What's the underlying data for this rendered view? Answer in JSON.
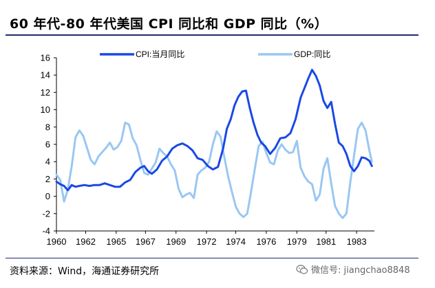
{
  "header": {
    "title": "60 年代-80 年代美国 CPI 同比和 GDP 同比（%）"
  },
  "footer": {
    "source": "资料来源：Wind，海通证券研究所",
    "watermark": "微信号: jiangchao8848"
  },
  "colors": {
    "cpi": "#1948e6",
    "gdp": "#99c7f2",
    "rule": "#1f2a6b"
  },
  "icons": {
    "watermark": "wechat-icon"
  },
  "chart_data": {
    "type": "line",
    "title": "60 年代-80 年代美国 CPI 同比和 GDP 同比（%）",
    "xlabel": "",
    "ylabel": "",
    "ylim": [
      -4,
      16
    ],
    "xlim": [
      1960.0,
      1985.0
    ],
    "yticks": [
      -4,
      -2,
      0,
      2,
      4,
      6,
      8,
      10,
      12,
      14,
      16
    ],
    "xticks": [
      "1960",
      "1962",
      "1965",
      "1967",
      "1969",
      "1972",
      "1974",
      "1976",
      "1979",
      "1981",
      "1983"
    ],
    "xtick_positions": [
      1960.0,
      1962.3,
      1964.7,
      1967.0,
      1969.4,
      1971.8,
      1974.1,
      1976.5,
      1978.9,
      1981.2,
      1983.6
    ],
    "legend_position": "top",
    "grid": false,
    "series": [
      {
        "name": "CPI:当月同比",
        "color": "#1948e6",
        "x": [
          1960.0,
          1960.3,
          1960.6,
          1960.9,
          1961.2,
          1961.5,
          1961.8,
          1962.2,
          1962.6,
          1963.0,
          1963.4,
          1963.8,
          1964.2,
          1964.6,
          1965.0,
          1965.4,
          1965.8,
          1966.2,
          1966.6,
          1966.9,
          1967.2,
          1967.5,
          1967.9,
          1968.3,
          1968.7,
          1969.1,
          1969.5,
          1969.9,
          1970.3,
          1970.7,
          1971.1,
          1971.5,
          1971.9,
          1972.3,
          1972.7,
          1973.1,
          1973.4,
          1973.7,
          1974.0,
          1974.3,
          1974.6,
          1974.9,
          1975.2,
          1975.5,
          1975.8,
          1976.1,
          1976.4,
          1976.8,
          1977.2,
          1977.6,
          1978.0,
          1978.4,
          1978.8,
          1979.2,
          1979.5,
          1979.8,
          1980.1,
          1980.4,
          1980.7,
          1981.0,
          1981.3,
          1981.6,
          1981.9,
          1982.2,
          1982.5,
          1982.8,
          1983.1,
          1983.4,
          1983.7,
          1984.0,
          1984.3,
          1984.6,
          1984.8
        ],
        "values": [
          1.7,
          1.4,
          1.2,
          0.7,
          1.3,
          1.1,
          1.2,
          1.3,
          1.2,
          1.3,
          1.3,
          1.5,
          1.3,
          1.1,
          1.1,
          1.6,
          1.9,
          2.8,
          3.3,
          3.5,
          2.9,
          2.6,
          3.1,
          4.1,
          4.6,
          5.5,
          5.9,
          6.1,
          5.8,
          5.3,
          4.4,
          4.2,
          3.5,
          3.1,
          3.4,
          5.5,
          7.8,
          8.9,
          10.5,
          11.5,
          12.1,
          12.2,
          10.2,
          8.5,
          7.1,
          6.2,
          5.8,
          4.9,
          5.6,
          6.7,
          6.8,
          7.3,
          8.9,
          11.4,
          12.5,
          13.6,
          14.6,
          13.9,
          12.8,
          11.0,
          10.2,
          10.9,
          8.4,
          6.2,
          5.8,
          4.9,
          3.5,
          2.9,
          3.5,
          4.5,
          4.4,
          4.1,
          3.5
        ]
      },
      {
        "name": "GDP:同比",
        "color": "#99c7f2",
        "x": [
          1960.0,
          1960.3,
          1960.6,
          1960.9,
          1961.2,
          1961.5,
          1961.8,
          1962.1,
          1962.4,
          1962.7,
          1963.0,
          1963.3,
          1963.6,
          1963.9,
          1964.2,
          1964.5,
          1964.8,
          1965.1,
          1965.4,
          1965.7,
          1966.0,
          1966.3,
          1966.6,
          1966.9,
          1967.2,
          1967.5,
          1967.8,
          1968.1,
          1968.4,
          1968.7,
          1969.0,
          1969.3,
          1969.6,
          1969.9,
          1970.2,
          1970.5,
          1970.8,
          1971.1,
          1971.4,
          1971.7,
          1972.0,
          1972.3,
          1972.6,
          1972.9,
          1973.2,
          1973.5,
          1973.8,
          1974.1,
          1974.4,
          1974.7,
          1975.0,
          1975.3,
          1975.6,
          1975.9,
          1976.2,
          1976.5,
          1976.8,
          1977.1,
          1977.4,
          1977.7,
          1978.0,
          1978.3,
          1978.6,
          1978.9,
          1979.2,
          1979.5,
          1979.8,
          1980.1,
          1980.4,
          1980.7,
          1981.0,
          1981.3,
          1981.6,
          1981.9,
          1982.2,
          1982.5,
          1982.8,
          1983.1,
          1983.4,
          1983.7,
          1984.0,
          1984.3,
          1984.6,
          1984.8
        ],
        "values": [
          2.5,
          1.9,
          -0.6,
          0.8,
          3.5,
          6.8,
          7.6,
          7.0,
          5.6,
          4.2,
          3.7,
          4.6,
          5.1,
          5.6,
          6.2,
          5.4,
          5.7,
          6.4,
          8.5,
          8.3,
          6.7,
          5.9,
          4.2,
          2.7,
          2.5,
          3.2,
          3.9,
          5.5,
          5.0,
          4.6,
          3.7,
          3.0,
          0.9,
          -0.1,
          0.2,
          0.4,
          -0.2,
          2.5,
          3.0,
          3.3,
          4.0,
          6.0,
          7.5,
          6.9,
          4.5,
          2.3,
          0.5,
          -1.2,
          -2.0,
          -2.4,
          -2.0,
          0.5,
          3.2,
          5.8,
          6.3,
          5.0,
          3.9,
          3.7,
          5.3,
          6.0,
          5.4,
          5.0,
          5.1,
          6.4,
          3.3,
          2.3,
          1.7,
          1.4,
          -0.5,
          0.2,
          3.2,
          4.4,
          1.5,
          -1.1,
          -2.0,
          -2.5,
          -2.0,
          1.6,
          4.7,
          7.8,
          8.5,
          7.6,
          5.3,
          4.0
        ]
      }
    ]
  }
}
